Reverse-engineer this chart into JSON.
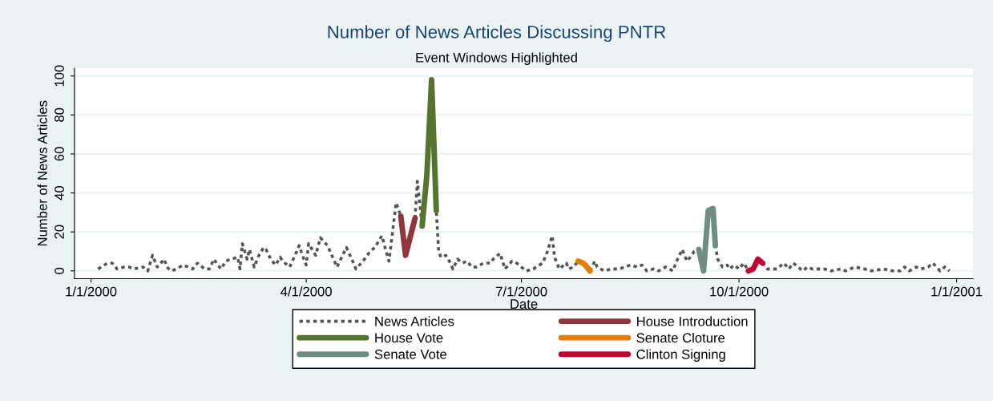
{
  "chart_data": {
    "type": "line",
    "title": "Number of News Articles Discussing PNTR",
    "subtitle": "Event Windows Highlighted",
    "xlabel": "Date",
    "ylabel": "Number of News Articles",
    "xlim": [
      "1999-12-25",
      "2001-01-08"
    ],
    "xticks": [
      {
        "value": "2000-01-01",
        "label": "1/1/2000"
      },
      {
        "value": "2000-04-01",
        "label": "4/1/2000"
      },
      {
        "value": "2000-07-01",
        "label": "7/1/2000"
      },
      {
        "value": "2000-10-01",
        "label": "10/1/2000"
      },
      {
        "value": "2001-01-01",
        "label": "1/1/2001"
      }
    ],
    "ylim": [
      -4,
      104
    ],
    "yticks": [
      0,
      20,
      40,
      60,
      80,
      100
    ],
    "grid": "y",
    "legend": "bottom",
    "series": [
      {
        "name": "News Articles",
        "color": "#555555",
        "line_style": "dotted",
        "x": [
          "2000-01-04",
          "2000-01-08",
          "2000-01-10",
          "2000-01-12",
          "2000-01-15",
          "2000-01-17",
          "2000-01-19",
          "2000-01-23",
          "2000-01-25",
          "2000-01-27",
          "2000-01-29",
          "2000-02-01",
          "2000-02-02",
          "2000-02-04",
          "2000-02-06",
          "2000-02-09",
          "2000-02-11",
          "2000-02-13",
          "2000-02-15",
          "2000-02-18",
          "2000-02-20",
          "2000-02-22",
          "2000-02-23",
          "2000-02-25",
          "2000-02-27",
          "2000-02-29",
          "2000-03-03",
          "2000-03-04",
          "2000-03-05",
          "2000-03-07",
          "2000-03-08",
          "2000-03-10",
          "2000-03-12",
          "2000-03-14",
          "2000-03-15",
          "2000-03-17",
          "2000-03-19",
          "2000-03-21",
          "2000-03-22",
          "2000-03-25",
          "2000-03-28",
          "2000-03-29",
          "2000-03-31",
          "2000-04-01",
          "2000-04-02",
          "2000-04-05",
          "2000-04-07",
          "2000-04-10",
          "2000-04-14",
          "2000-04-18",
          "2000-04-21",
          "2000-04-22",
          "2000-04-25",
          "2000-04-28",
          "2000-04-30",
          "2000-05-03",
          "2000-05-05",
          "2000-05-06",
          "2000-05-09",
          "2000-05-11",
          "2000-05-13",
          "2000-05-17",
          "2000-05-18",
          "2000-05-20",
          "2000-05-22",
          "2000-05-24",
          "2000-05-26",
          "2000-05-27",
          "2000-05-28",
          "2000-05-30",
          "2000-06-01",
          "2000-06-02",
          "2000-06-04",
          "2000-06-06",
          "2000-06-08",
          "2000-06-10",
          "2000-06-12",
          "2000-06-15",
          "2000-06-18",
          "2000-06-19",
          "2000-06-22",
          "2000-06-24",
          "2000-06-27",
          "2000-06-29",
          "2000-07-03",
          "2000-07-06",
          "2000-07-10",
          "2000-07-12",
          "2000-07-14",
          "2000-07-15",
          "2000-07-17",
          "2000-07-20",
          "2000-07-21",
          "2000-07-23",
          "2000-07-25",
          "2000-07-27",
          "2000-07-28",
          "2000-07-30",
          "2000-08-01",
          "2000-08-02",
          "2000-08-05",
          "2000-08-08",
          "2000-08-11",
          "2000-08-14",
          "2000-08-16",
          "2000-08-19",
          "2000-08-21",
          "2000-08-23",
          "2000-08-26",
          "2000-08-28",
          "2000-08-31",
          "2000-09-03",
          "2000-09-05",
          "2000-09-07",
          "2000-09-09",
          "2000-09-11",
          "2000-09-12",
          "2000-09-14",
          "2000-09-16",
          "2000-09-18",
          "2000-09-20",
          "2000-09-21",
          "2000-09-22",
          "2000-09-24",
          "2000-09-26",
          "2000-09-27",
          "2000-09-29",
          "2000-10-01",
          "2000-10-03",
          "2000-10-05",
          "2000-10-07",
          "2000-10-09",
          "2000-10-11",
          "2000-10-13",
          "2000-10-17",
          "2000-10-20",
          "2000-10-22",
          "2000-10-24",
          "2000-10-26",
          "2000-10-28",
          "2000-10-30",
          "2000-11-01",
          "2000-11-03",
          "2000-11-06",
          "2000-11-09",
          "2000-11-13",
          "2000-11-15",
          "2000-11-19",
          "2000-11-23",
          "2000-11-26",
          "2000-12-01",
          "2000-12-05",
          "2000-12-08",
          "2000-12-10",
          "2000-12-12",
          "2000-12-15",
          "2000-12-17",
          "2000-12-20",
          "2000-12-22",
          "2000-12-25",
          "2000-12-27",
          "2000-12-29"
        ],
        "values": [
          1,
          4,
          4,
          1,
          2,
          2,
          1,
          2,
          0,
          8,
          2,
          6,
          2,
          0,
          1,
          3,
          2,
          1,
          4,
          1,
          1,
          6,
          4,
          1,
          5,
          6,
          7,
          1,
          14,
          6,
          11,
          2,
          8,
          12,
          11,
          6,
          3,
          7,
          5,
          2,
          10,
          13,
          6,
          3,
          14,
          8,
          17,
          13,
          2,
          12,
          4,
          1,
          5,
          10,
          12,
          18,
          9,
          5,
          35,
          28,
          8,
          27,
          46,
          23,
          49,
          98,
          31,
          10,
          7,
          8,
          4,
          1,
          6,
          4,
          5,
          2,
          2,
          4,
          4,
          6,
          9,
          1,
          5,
          4,
          0,
          1,
          4,
          10,
          18,
          7,
          1,
          4,
          1,
          2,
          5,
          4,
          3,
          0,
          5,
          2,
          0,
          1,
          1,
          2,
          3,
          2,
          3,
          0,
          1,
          0,
          2,
          0,
          6,
          11,
          5,
          8,
          10,
          11,
          0,
          31,
          32,
          13,
          6,
          2,
          3,
          1,
          3,
          1,
          4,
          0,
          2,
          6,
          4,
          1,
          1,
          4,
          1,
          4,
          2,
          0,
          2,
          1,
          1,
          1,
          0,
          1,
          0,
          2,
          1,
          0,
          1,
          0,
          0,
          2,
          0,
          2,
          1,
          2,
          4,
          0,
          2,
          0
        ]
      },
      {
        "name": "House Introduction",
        "color": "#90353b",
        "x": [
          "2000-05-11",
          "2000-05-13",
          "2000-05-17"
        ],
        "values": [
          28,
          8,
          27
        ]
      },
      {
        "name": "House Vote",
        "color": "#55752f",
        "x": [
          "2000-05-20",
          "2000-05-22",
          "2000-05-24",
          "2000-05-26"
        ],
        "values": [
          23,
          49,
          98,
          31
        ]
      },
      {
        "name": "Senate Cloture",
        "color": "#e37e00",
        "x": [
          "2000-07-25",
          "2000-07-27",
          "2000-07-28",
          "2000-07-30"
        ],
        "values": [
          5,
          4,
          3,
          0
        ]
      },
      {
        "name": "Senate Vote",
        "color": "#6e8e84",
        "x": [
          "2000-09-14",
          "2000-09-16",
          "2000-09-18",
          "2000-09-20",
          "2000-09-21"
        ],
        "values": [
          11,
          0,
          31,
          32,
          13
        ]
      },
      {
        "name": "Clinton Signing",
        "color": "#c10534",
        "x": [
          "2000-10-05",
          "2000-10-07",
          "2000-10-09",
          "2000-10-11"
        ],
        "values": [
          0,
          1,
          6,
          4
        ]
      }
    ]
  }
}
